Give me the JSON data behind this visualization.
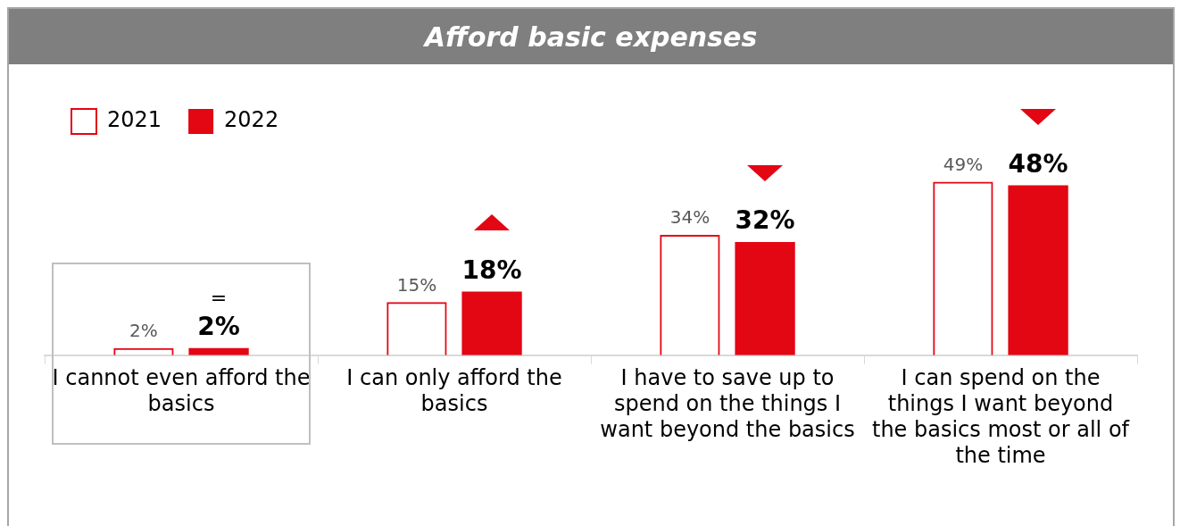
{
  "chart_data": {
    "type": "bar",
    "title": "Afford basic expenses",
    "categories": [
      "I cannot even afford the basics",
      "I can only afford the basics",
      "I have to save up to spend on the things I want beyond the basics",
      "I can spend on the things I want beyond the basics most or all of the time"
    ],
    "series": [
      {
        "name": "2021",
        "color": "#e30613",
        "line_style": "dashed",
        "values": [
          2,
          15,
          34,
          49
        ],
        "value_labels": [
          "2%",
          "15%",
          "34%",
          "49%"
        ]
      },
      {
        "name": "2022",
        "color": "#e30613",
        "values": [
          2,
          18,
          32,
          48
        ],
        "value_labels": [
          "2%",
          "18%",
          "32%",
          "48%"
        ]
      }
    ],
    "tick_labels": "x",
    "legend": "top left",
    "annotations": [
      "="
    ]
  }
}
